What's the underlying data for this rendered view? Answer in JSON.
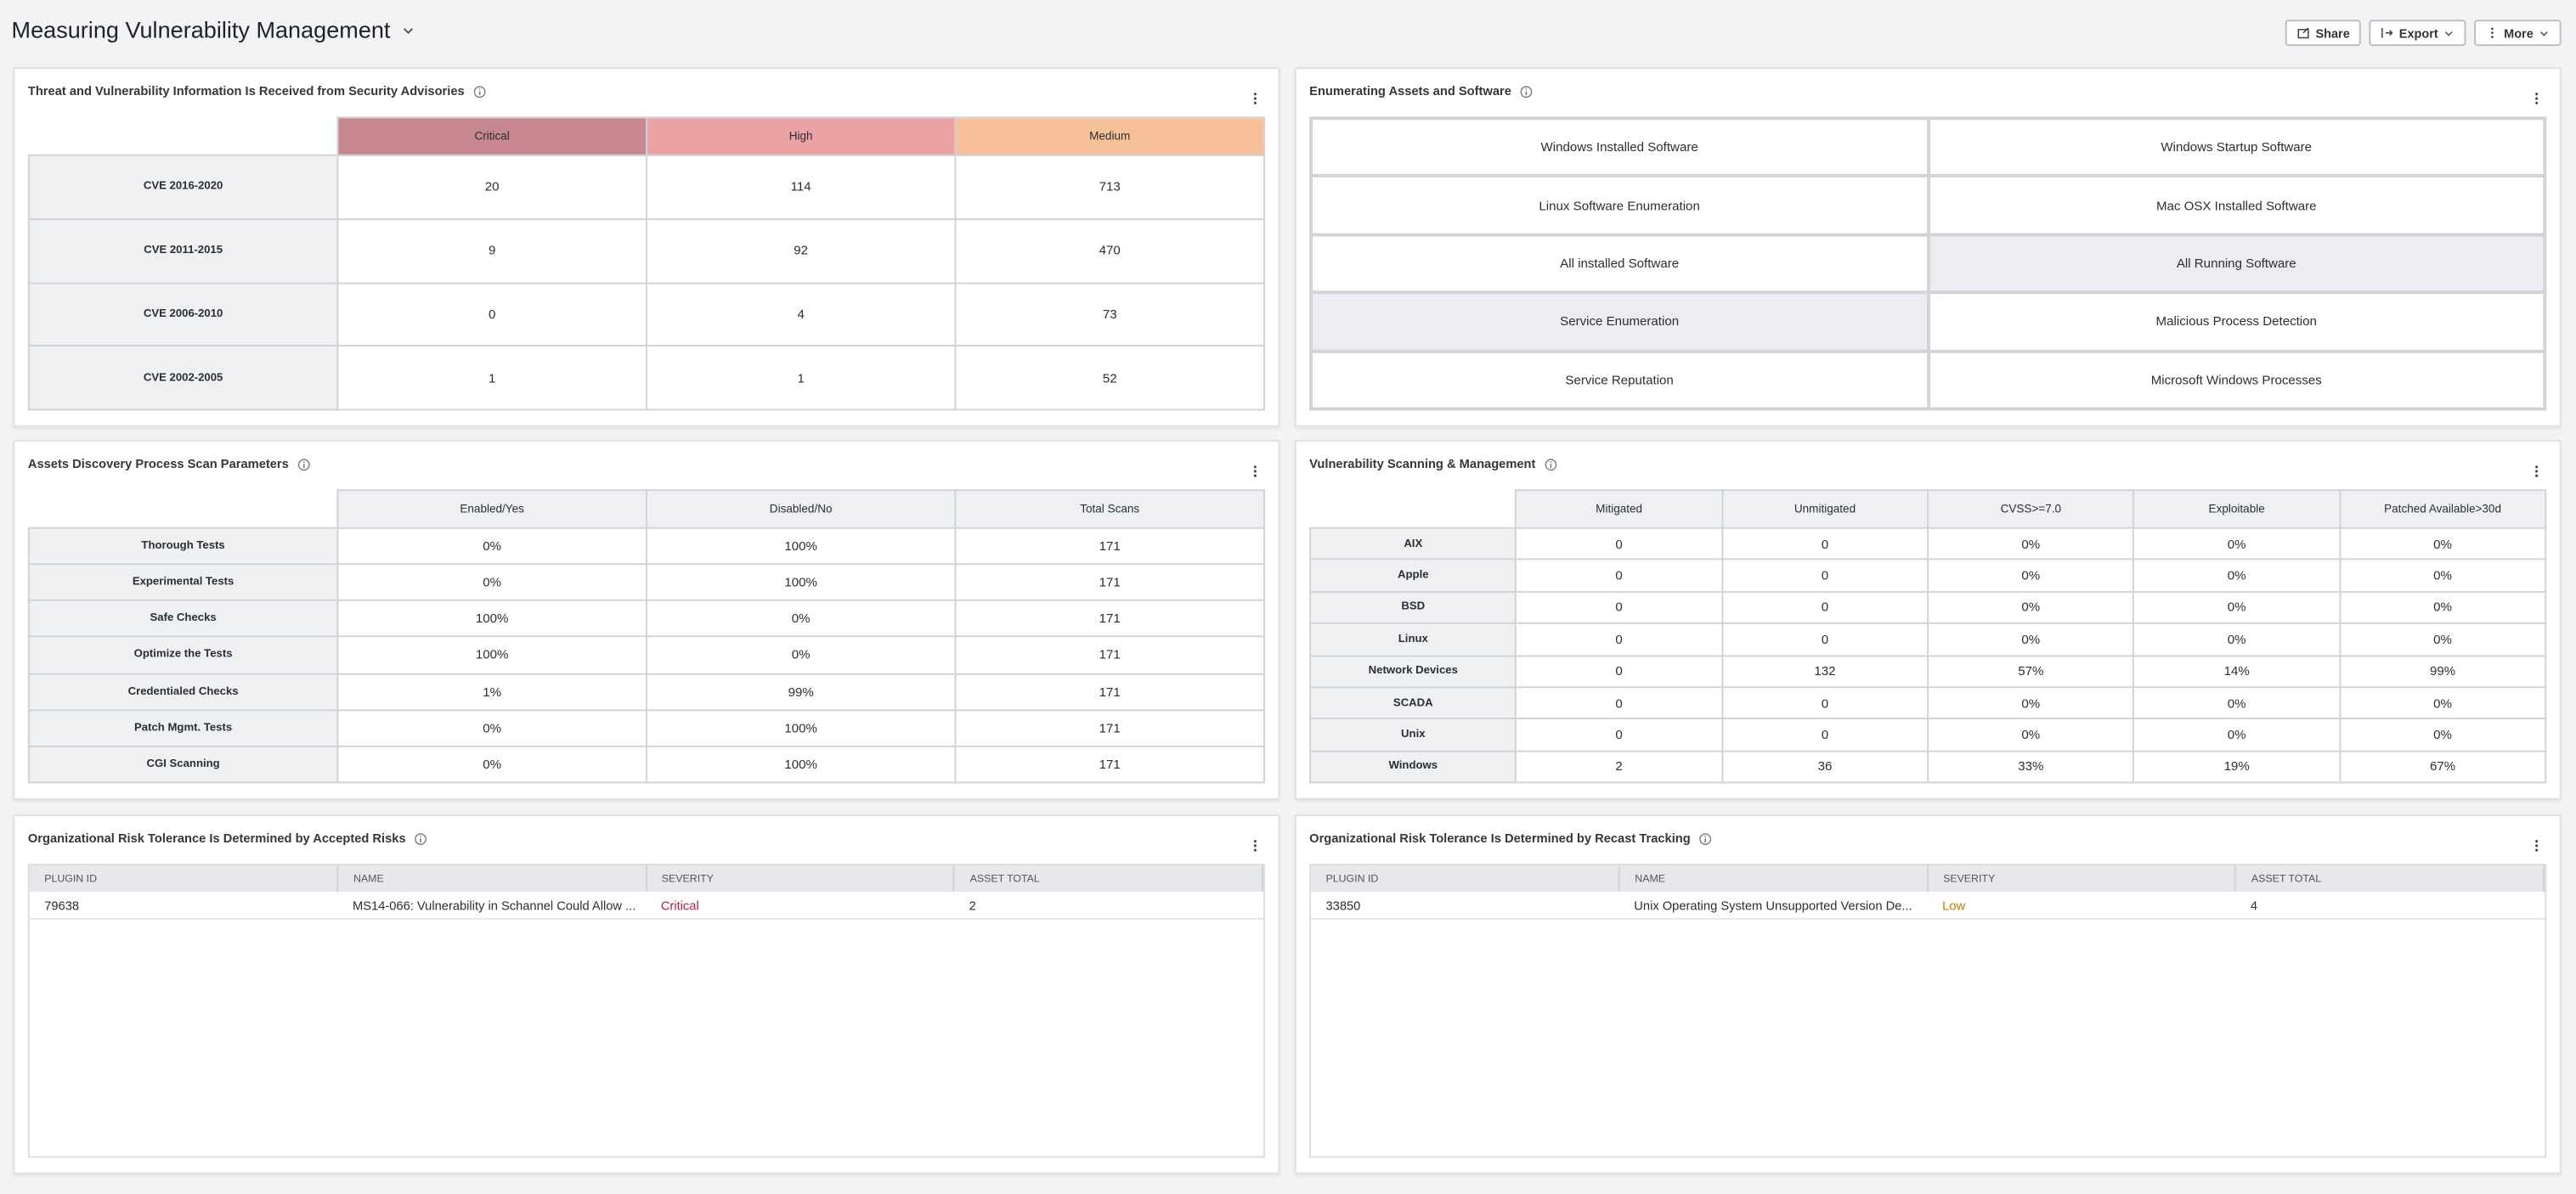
{
  "header": {
    "title": "Measuring Vulnerability Management",
    "buttons": [
      "Share",
      "Export",
      "More"
    ]
  },
  "panels": [
    {
      "title": "Threat and Vulnerability Information Is Received from Security Advisories",
      "columns": [
        "Critical",
        "High",
        "Medium"
      ],
      "column_colors": [
        "#c98792",
        "#eba2a5",
        "#f6c09b"
      ],
      "rows": [
        {
          "label": "CVE 2016-2020",
          "values": [
            20,
            114,
            713
          ]
        },
        {
          "label": "CVE 2011-2015",
          "values": [
            9,
            92,
            470
          ]
        },
        {
          "label": "CVE 2006-2010",
          "values": [
            0,
            4,
            73
          ]
        },
        {
          "label": "CVE 2002-2005",
          "values": [
            1,
            1,
            52
          ]
        }
      ]
    },
    {
      "title": "Enumerating Assets and Software",
      "cells": [
        {
          "label": "Windows Installed Software"
        },
        {
          "label": "Windows Startup Software"
        },
        {
          "label": "Linux Software Enumeration"
        },
        {
          "label": "Mac OSX Installed Software"
        },
        {
          "label": "All installed Software"
        },
        {
          "label": "All Running Software",
          "highlighted": true
        },
        {
          "label": "Service Enumeration",
          "highlighted": true
        },
        {
          "label": "Malicious Process Detection"
        },
        {
          "label": "Service Reputation"
        },
        {
          "label": "Microsoft Windows Processes"
        }
      ]
    },
    {
      "title": "Assets Discovery Process Scan Parameters",
      "columns": [
        "Enabled/Yes",
        "Disabled/No",
        "Total Scans"
      ],
      "rows": [
        {
          "label": "Thorough Tests",
          "values": [
            "0%",
            "100%",
            "171"
          ]
        },
        {
          "label": "Experimental Tests",
          "values": [
            "0%",
            "100%",
            "171"
          ]
        },
        {
          "label": "Safe Checks",
          "values": [
            "100%",
            "0%",
            "171"
          ]
        },
        {
          "label": "Optimize the Tests",
          "values": [
            "100%",
            "0%",
            "171"
          ]
        },
        {
          "label": "Credentialed Checks",
          "values": [
            "1%",
            "99%",
            "171"
          ]
        },
        {
          "label": "Patch Mgmt. Tests",
          "values": [
            "0%",
            "100%",
            "171"
          ]
        },
        {
          "label": "CGI Scanning",
          "values": [
            "0%",
            "100%",
            "171"
          ]
        }
      ]
    },
    {
      "title": "Vulnerability Scanning & Management",
      "columns": [
        "Mitigated",
        "Unmitigated",
        "CVSS>=7.0",
        "Exploitable",
        "Patched Available>30d"
      ],
      "rows": [
        {
          "label": "AIX",
          "values": [
            "0",
            "0",
            "0%",
            "0%",
            "0%"
          ]
        },
        {
          "label": "Apple",
          "values": [
            "0",
            "0",
            "0%",
            "0%",
            "0%"
          ]
        },
        {
          "label": "BSD",
          "values": [
            "0",
            "0",
            "0%",
            "0%",
            "0%"
          ]
        },
        {
          "label": "Linux",
          "values": [
            "0",
            "0",
            "0%",
            "0%",
            "0%"
          ]
        },
        {
          "label": "Network Devices",
          "values": [
            "0",
            "132",
            "57%",
            "14%",
            "99%"
          ]
        },
        {
          "label": "SCADA",
          "values": [
            "0",
            "0",
            "0%",
            "0%",
            "0%"
          ]
        },
        {
          "label": "Unix",
          "values": [
            "0",
            "0",
            "0%",
            "0%",
            "0%"
          ]
        },
        {
          "label": "Windows",
          "values": [
            "2",
            "36",
            "33%",
            "19%",
            "67%"
          ]
        }
      ]
    },
    {
      "title": "Organizational Risk Tolerance Is Determined by Accepted Risks",
      "columns": [
        "PLUGIN ID",
        "NAME",
        "SEVERITY",
        "ASSET TOTAL"
      ],
      "rows": [
        {
          "cells": [
            "79638",
            "MS14-066: Vulnerability in Schannel Could Allow ...",
            "Critical",
            "2"
          ],
          "severity_color": "#b3233f"
        }
      ]
    },
    {
      "title": "Organizational Risk Tolerance Is Determined by Recast Tracking",
      "columns": [
        "PLUGIN ID",
        "NAME",
        "SEVERITY",
        "ASSET TOTAL"
      ],
      "rows": [
        {
          "cells": [
            "33850",
            "Unix Operating System Unsupported Version De...",
            "Low",
            "4"
          ],
          "severity_color": "#c47a00"
        }
      ]
    }
  ]
}
